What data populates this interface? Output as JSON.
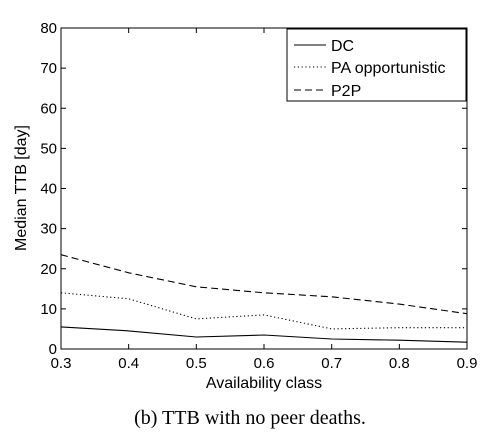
{
  "chart_data": {
    "type": "line",
    "x": [
      0.3,
      0.4,
      0.5,
      0.6,
      0.7,
      0.8,
      0.9
    ],
    "xlabel": "Availability class",
    "ylabel": "Median TTB [day]",
    "xlim": [
      0.3,
      0.9
    ],
    "ylim": [
      0,
      80
    ],
    "xticks": [
      "0.3",
      "0.4",
      "0.5",
      "0.6",
      "0.7",
      "0.8",
      "0.9"
    ],
    "yticks": [
      "0",
      "10",
      "20",
      "30",
      "40",
      "50",
      "60",
      "70",
      "80"
    ],
    "grid": false,
    "legend_position": "top-right",
    "series": [
      {
        "name": "DC",
        "style": "solid",
        "values": [
          5.5,
          4.5,
          3.0,
          3.5,
          2.5,
          2.2,
          1.7
        ]
      },
      {
        "name": "PA opportunistic",
        "style": "dotted",
        "values": [
          14.0,
          12.5,
          7.5,
          8.5,
          5.0,
          5.3,
          5.3
        ]
      },
      {
        "name": "P2P",
        "style": "dashed",
        "values": [
          23.5,
          19.0,
          15.5,
          14.0,
          13.0,
          11.2,
          8.8
        ]
      }
    ]
  },
  "caption": "(b) TTB with no peer deaths."
}
